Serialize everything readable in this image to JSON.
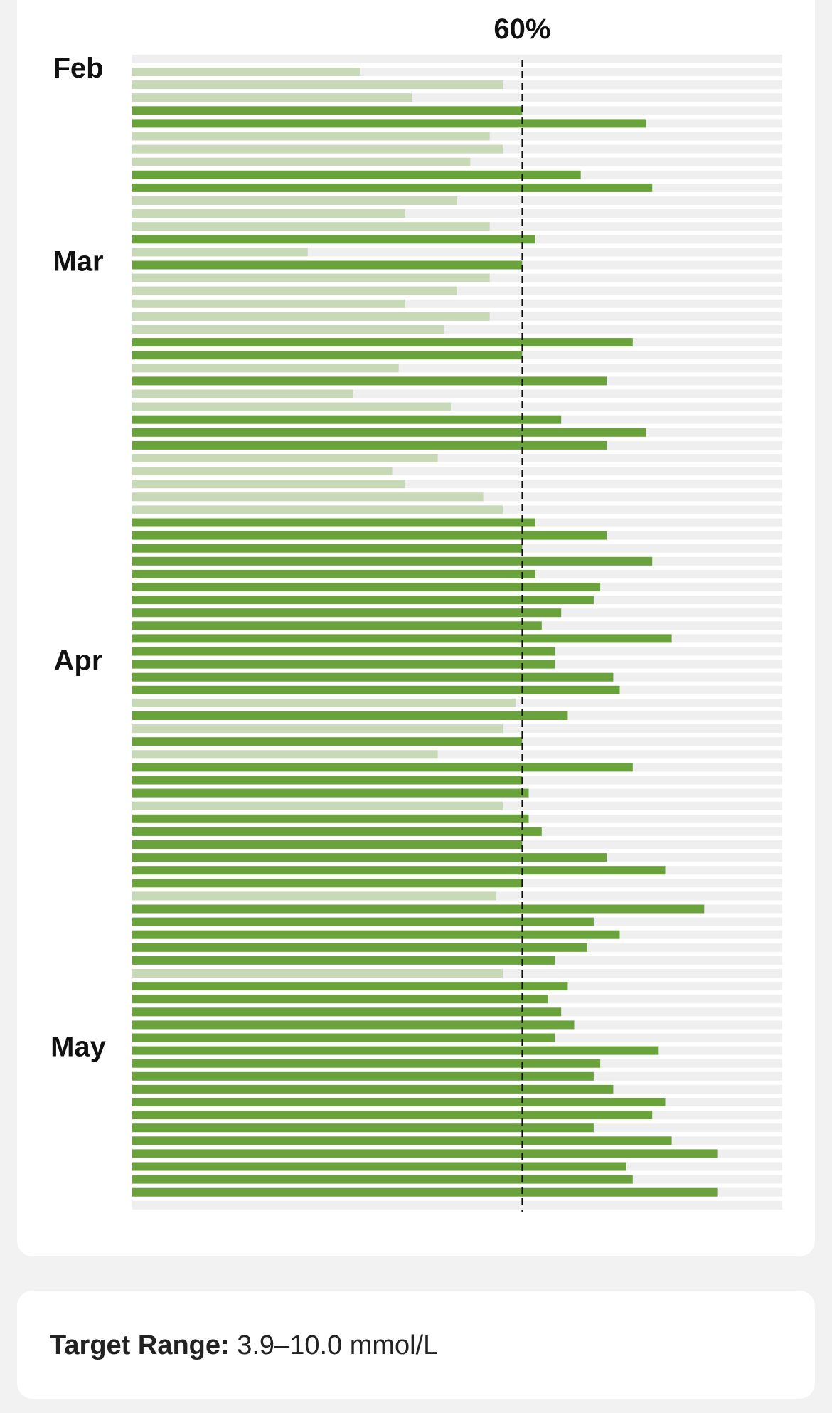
{
  "colors": {
    "above": "#6aa33b",
    "below": "#c8d9b7",
    "track": "#efefef",
    "threshold_line": "#111111"
  },
  "target_range": {
    "label": "Target Range:",
    "value": "3.9–10.0 mmol/L"
  },
  "chart_data": {
    "type": "bar",
    "orientation": "horizontal",
    "threshold": {
      "value": 60,
      "label": "60%"
    },
    "xlim": [
      0,
      100
    ],
    "month_labels": [
      {
        "text": "Feb",
        "row": 0
      },
      {
        "text": "Mar",
        "row": 15
      },
      {
        "text": "Apr",
        "row": 46
      },
      {
        "text": "May",
        "row": 76
      }
    ],
    "values": [
      35,
      57,
      43,
      60,
      79,
      55,
      57,
      52,
      69,
      80,
      50,
      42,
      55,
      62,
      27,
      60,
      55,
      50,
      42,
      55,
      48,
      77,
      60,
      41,
      73,
      34,
      49,
      66,
      79,
      73,
      47,
      40,
      42,
      54,
      57,
      62,
      73,
      60,
      80,
      62,
      72,
      71,
      66,
      63,
      83,
      65,
      65,
      74,
      75,
      59,
      67,
      57,
      60,
      47,
      77,
      60,
      61,
      57,
      61,
      63,
      60,
      73,
      82,
      60,
      56,
      88,
      71,
      75,
      70,
      65,
      57,
      67,
      64,
      66,
      68,
      65,
      81,
      72,
      71,
      74,
      82,
      80,
      71,
      83,
      90,
      76,
      77,
      90
    ]
  }
}
